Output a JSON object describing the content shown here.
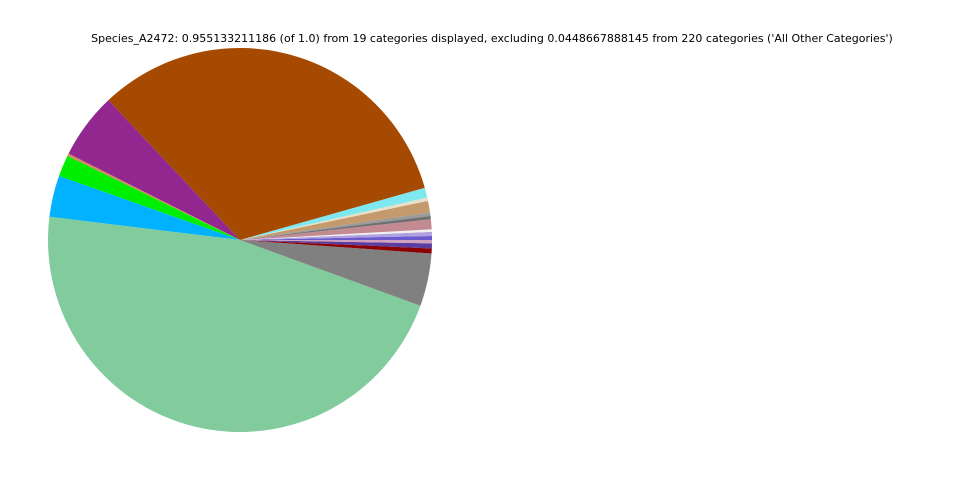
{
  "chart_data": {
    "type": "pie",
    "title": "Species_A2472: 0.955133211186 (of 1.0) from 19 categories displayed, excluding 0.0448667888145 from 220 categories ('All Other Categories')",
    "categories": [
      null,
      null,
      null,
      null,
      null,
      null,
      null,
      null,
      null,
      null,
      null,
      null,
      null,
      null,
      null,
      null,
      null,
      null,
      null
    ],
    "values": [
      0.0032,
      0.0032,
      0.0021,
      0.008,
      0.0027,
      0.0027,
      0.0093,
      0.0027,
      0.008,
      0.3117,
      0.0531,
      0.0021,
      0.0172,
      0.0332,
      0.443,
      0.0424,
      0.004,
      0.004,
      0.0027
    ],
    "colors": [
      "#6a5acd",
      "#b0a0e0",
      "#f0f0f0",
      "#c48a92",
      "#707070",
      "#9a9a9a",
      "#c49a6c",
      "#e8e0c8",
      "#7de8f0",
      "#a54a00",
      "#92278f",
      "#d08a60",
      "#00ee00",
      "#00b2ff",
      "#81cb9d",
      "#808080",
      "#8b0000",
      "#5a3d9e",
      "#d0a0c0"
    ]
  }
}
